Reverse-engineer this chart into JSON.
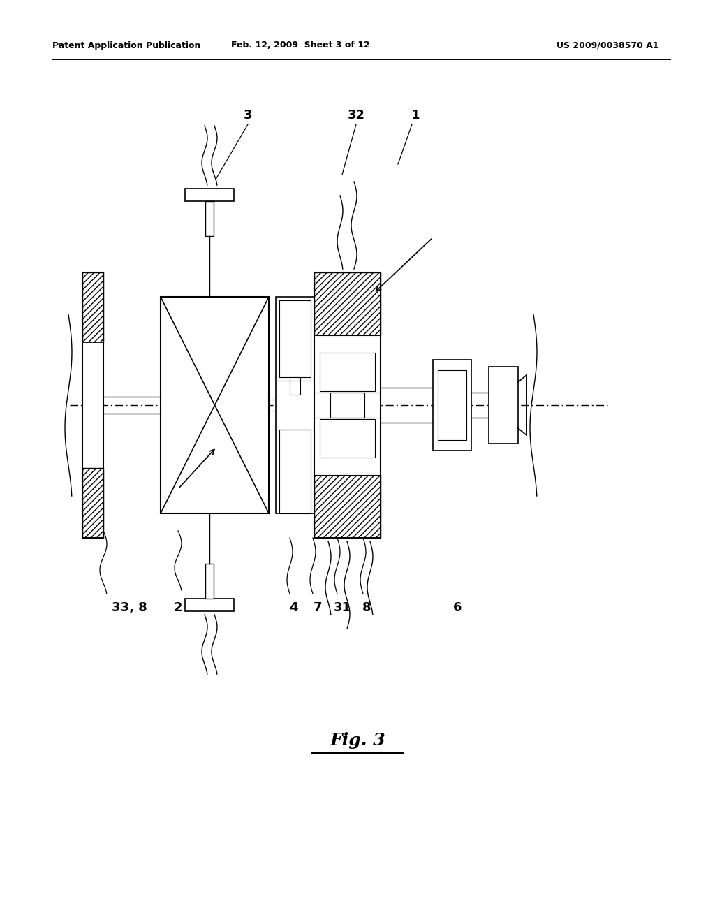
{
  "bg_color": "#ffffff",
  "line_color": "#000000",
  "header_left": "Patent Application Publication",
  "header_mid": "Feb. 12, 2009  Sheet 3 of 12",
  "header_right": "US 2009/0038570 A1",
  "fig_label": "Fig. 3"
}
